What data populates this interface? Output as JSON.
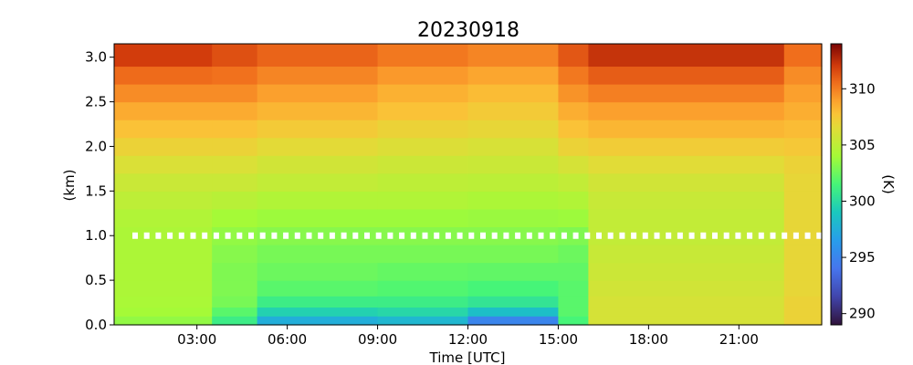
{
  "chart_data": {
    "type": "heatmap",
    "title": "20230918",
    "xlabel": "Time [UTC]",
    "ylabel": "(km)",
    "colorbar_label": "(K)",
    "xlim_hours": [
      0.25,
      23.75
    ],
    "ylim_km": [
      0.0,
      3.15
    ],
    "x_ticks": [
      {
        "value": 3,
        "label": "03:00"
      },
      {
        "value": 6,
        "label": "06:00"
      },
      {
        "value": 9,
        "label": "09:00"
      },
      {
        "value": 12,
        "label": "12:00"
      },
      {
        "value": 15,
        "label": "15:00"
      },
      {
        "value": 18,
        "label": "18:00"
      },
      {
        "value": 21,
        "label": "21:00"
      }
    ],
    "y_ticks": [
      {
        "value": 0.0,
        "label": "0.0"
      },
      {
        "value": 0.5,
        "label": "0.5"
      },
      {
        "value": 1.0,
        "label": "1.0"
      },
      {
        "value": 1.5,
        "label": "1.5"
      },
      {
        "value": 2.0,
        "label": "2.0"
      },
      {
        "value": 2.5,
        "label": "2.5"
      },
      {
        "value": 3.0,
        "label": "3.0"
      }
    ],
    "colorbar": {
      "vmin": 289,
      "vmax": 314,
      "ticks": [
        {
          "value": 290,
          "label": "290"
        },
        {
          "value": 295,
          "label": "295"
        },
        {
          "value": 300,
          "label": "300"
        },
        {
          "value": 305,
          "label": "305"
        },
        {
          "value": 310,
          "label": "310"
        }
      ]
    },
    "levels_km": [
      0.05,
      0.15,
      0.25,
      0.4,
      0.6,
      0.8,
      1.0,
      1.2,
      1.4,
      1.6,
      1.8,
      2.0,
      2.2,
      2.4,
      2.6,
      2.8,
      3.0
    ],
    "temperature_profile_K": [
      {
        "time_range": "00:15-03:30",
        "values": [
          303.5,
          304.0,
          304.2,
          304.3,
          304.3,
          304.3,
          304.3,
          304.5,
          305.0,
          305.5,
          306.2,
          307.0,
          307.8,
          308.6,
          309.6,
          310.6,
          312.0
        ]
      },
      {
        "time_range": "03:30-05:00",
        "values": [
          301.0,
          302.0,
          302.8,
          303.0,
          303.0,
          303.2,
          303.5,
          304.0,
          304.8,
          305.5,
          306.2,
          307.0,
          307.8,
          308.6,
          309.6,
          310.4,
          311.4
        ]
      },
      {
        "time_range": "05:00-09:00",
        "values": [
          297.5,
          299.5,
          301.0,
          302.0,
          302.5,
          302.8,
          303.2,
          303.8,
          304.5,
          305.2,
          305.8,
          306.6,
          307.4,
          308.2,
          309.0,
          309.8,
          310.8
        ]
      },
      {
        "time_range": "09:00-12:00",
        "values": [
          298.0,
          299.8,
          301.0,
          301.8,
          302.3,
          302.8,
          303.2,
          303.8,
          304.5,
          305.0,
          305.6,
          306.3,
          307.0,
          307.8,
          308.4,
          309.2,
          310.2
        ]
      },
      {
        "time_range": "12:00-15:00",
        "values": [
          295.0,
          298.5,
          300.5,
          301.5,
          302.2,
          302.8,
          303.2,
          303.7,
          304.3,
          304.9,
          305.5,
          306.1,
          306.8,
          307.4,
          308.0,
          308.8,
          309.8
        ]
      },
      {
        "time_range": "15:00-16:00",
        "values": [
          301.5,
          302.0,
          302.0,
          302.0,
          302.2,
          302.5,
          303.0,
          303.8,
          304.5,
          305.2,
          306.0,
          307.0,
          307.8,
          308.5,
          309.4,
          310.2,
          311.2
        ]
      },
      {
        "time_range": "16:00-22:30",
        "values": [
          306.0,
          306.0,
          306.0,
          305.8,
          305.6,
          305.4,
          305.2,
          305.2,
          305.4,
          305.8,
          306.5,
          307.3,
          308.2,
          309.0,
          310.0,
          311.0,
          312.3
        ]
      },
      {
        "time_range": "22:30-23:45",
        "values": [
          307.0,
          307.0,
          307.0,
          306.8,
          306.8,
          306.8,
          306.8,
          306.8,
          306.8,
          306.8,
          307.0,
          307.5,
          308.0,
          308.5,
          309.0,
          309.6,
          310.5
        ]
      }
    ],
    "annotation_line": {
      "height_km": 1.0,
      "style": "dotted",
      "color": "#ffffff"
    },
    "colormap": "turbo",
    "grid": false
  }
}
